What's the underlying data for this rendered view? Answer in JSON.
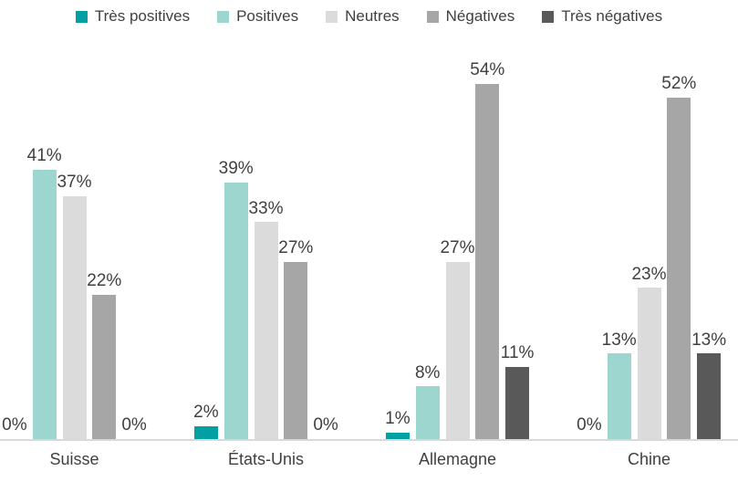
{
  "chart_data": {
    "type": "bar",
    "title": "",
    "xlabel": "",
    "ylabel": "",
    "categories": [
      "Suisse",
      "États-Unis",
      "Allemagne",
      "Chine"
    ],
    "series": [
      {
        "name": "Très positives",
        "color": "#02a0a2",
        "values": [
          0,
          2,
          1,
          0
        ]
      },
      {
        "name": "Positives",
        "color": "#9dd6ce",
        "values": [
          41,
          39,
          8,
          13
        ]
      },
      {
        "name": "Neutres",
        "color": "#dbdbdb",
        "values": [
          37,
          33,
          27,
          23
        ]
      },
      {
        "name": "Négatives",
        "color": "#a6a6a6",
        "values": [
          22,
          27,
          54,
          52
        ]
      },
      {
        "name": "Très négatives",
        "color": "#595959",
        "values": [
          0,
          0,
          11,
          13
        ]
      }
    ],
    "data_labels": [
      "0%",
      "41%",
      "37%",
      "22%",
      "0%",
      "2%",
      "39%",
      "33%",
      "27%",
      "0%",
      "1%",
      "8%",
      "27%",
      "54%",
      "11%",
      "0%",
      "13%",
      "23%",
      "52%",
      "13%"
    ],
    "value_format": "percent",
    "legend_position": "top",
    "gridlines": false,
    "y_axis_visible": false,
    "ylim": [
      0,
      60
    ]
  },
  "colors": {
    "background": "#ffffff",
    "text": "#404040",
    "axis_line": "#d9d9d9"
  }
}
